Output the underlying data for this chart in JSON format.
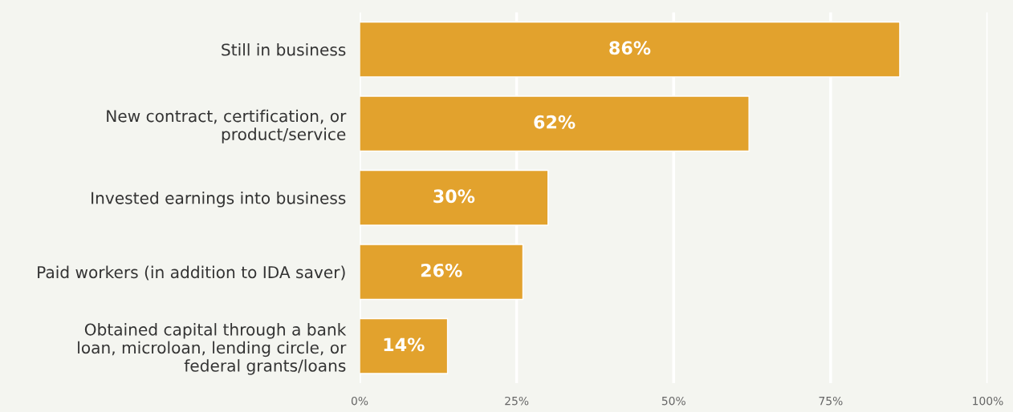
{
  "chart_data": {
    "type": "bar",
    "orientation": "horizontal",
    "categories": [
      "Still in business",
      "New contract, certification, or\nproduct/service",
      "Invested earnings into business",
      "Paid workers (in addition to IDA saver)",
      "Obtained capital through a bank\nloan, microloan, lending circle, or\nfederal grants/loans"
    ],
    "values": [
      86,
      62,
      30,
      26,
      14
    ],
    "value_labels": [
      "86%",
      "62%",
      "30%",
      "26%",
      "14%"
    ],
    "color": "#e2a22d",
    "xlim": [
      0,
      100
    ],
    "xticks": [
      {
        "value": 0,
        "label": "0%"
      },
      {
        "value": 25,
        "label": "25%"
      },
      {
        "value": 50,
        "label": "50%"
      },
      {
        "value": 75,
        "label": "75%"
      },
      {
        "value": 100,
        "label": "100%"
      }
    ],
    "grid": "x",
    "legend": false
  }
}
